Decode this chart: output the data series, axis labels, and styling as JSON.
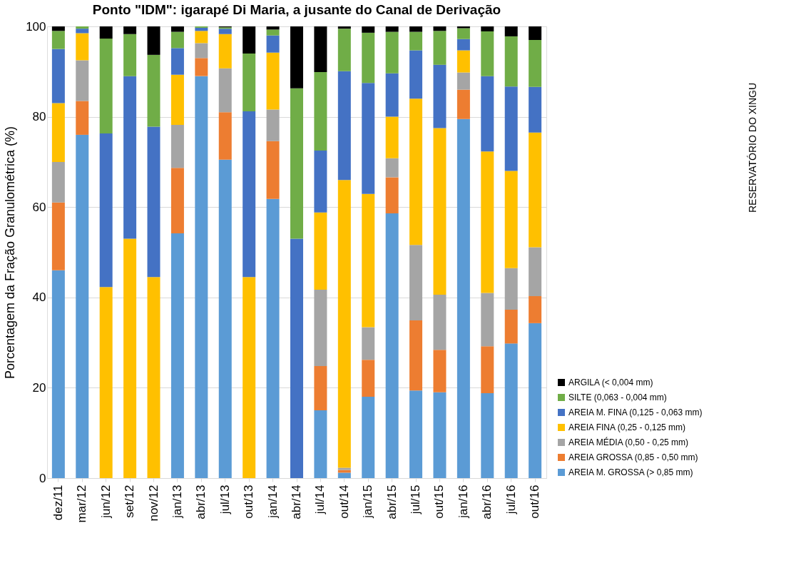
{
  "chart_data": {
    "type": "bar",
    "stacked": true,
    "title": "Ponto  \"IDM\": igarapé Di Maria, a jusante do Canal de Derivação",
    "ylabel": "Porcentagem da Fração Granulométrica (%)",
    "annotations": [
      "RESERVATÓRIO DO XINGU"
    ],
    "categories": [
      "dez/11",
      "mar/12",
      "jun/12",
      "set/12",
      "nov/12",
      "jan/13",
      "abr/13",
      "jul/13",
      "out/13",
      "jan/14",
      "abr/14",
      "jul/14",
      "out/14",
      "jan/15",
      "abr/15",
      "jul/15",
      "out/15",
      "jan/16",
      "abr/16",
      "jul/16",
      "out/16"
    ],
    "ylim": [
      0,
      100
    ],
    "yticks": [
      0,
      20,
      40,
      60,
      80,
      100
    ],
    "grid": "y",
    "legend": "right",
    "series": [
      {
        "name": "AREIA M. GROSSA (> 0,85 mm)",
        "color": "#5b9bd5",
        "values": [
          46,
          76,
          null,
          null,
          null,
          54.2,
          89,
          70.5,
          null,
          61.8,
          null,
          15,
          1.2,
          18,
          58.6,
          19.4,
          19,
          79.5,
          18.8,
          29.8,
          34.3
        ]
      },
      {
        "name": "AREIA GROSSA (0,85 - 0,50 mm)",
        "color": "#ed7d31",
        "values": [
          15,
          7.5,
          null,
          null,
          null,
          14.5,
          4,
          10.5,
          null,
          12.8,
          null,
          9.8,
          0.6,
          8.2,
          8,
          15.5,
          9.4,
          6.5,
          10.4,
          7.5,
          6
        ]
      },
      {
        "name": "AREIA MÉDIA (0,50 - 0,25 mm)",
        "color": "#a5a5a5",
        "values": [
          9,
          9,
          null,
          null,
          null,
          9.5,
          3.3,
          9.7,
          null,
          7,
          null,
          16.9,
          0.5,
          7.2,
          4.2,
          16.7,
          12.2,
          3.8,
          11.8,
          9.2,
          10.8
        ]
      },
      {
        "name": "AREIA FINA (0,25 - 0,125 mm)",
        "color": "#ffc000",
        "values": [
          13,
          6,
          42.3,
          53,
          44.5,
          11.1,
          2.7,
          7.6,
          44.5,
          12.6,
          null,
          17.1,
          63.7,
          29.5,
          9.2,
          32.4,
          36.9,
          4.9,
          31.3,
          21.5,
          25.4
        ]
      },
      {
        "name": "AREIA M. FINA (0,125 - 0,063 mm)",
        "color": "#4472c4",
        "values": [
          12,
          1,
          34,
          36,
          33.3,
          5.9,
          0.7,
          1.2,
          36.7,
          3.8,
          53,
          13.7,
          24.1,
          24.6,
          9.6,
          10.7,
          14,
          2.5,
          16.7,
          18.7,
          10.1
        ]
      },
      {
        "name": "SILTE (0,063 -  0,004 mm)",
        "color": "#70ad47",
        "values": [
          4,
          0.5,
          21,
          9.3,
          15.9,
          3.6,
          0.3,
          0.3,
          12.8,
          1.3,
          33.3,
          17.4,
          9.4,
          11.1,
          9.2,
          4.1,
          7.5,
          2.4,
          9.9,
          11.1,
          10.4
        ]
      },
      {
        "name": "ARGILA (< 0,004 mm)",
        "color": "#000000",
        "values": [
          1,
          null,
          2.7,
          1.7,
          6.3,
          1.2,
          null,
          0.2,
          6,
          0.7,
          13.7,
          10.1,
          0.5,
          1.4,
          1.2,
          1.2,
          1,
          0.4,
          1.1,
          2.2,
          3
        ]
      }
    ]
  }
}
